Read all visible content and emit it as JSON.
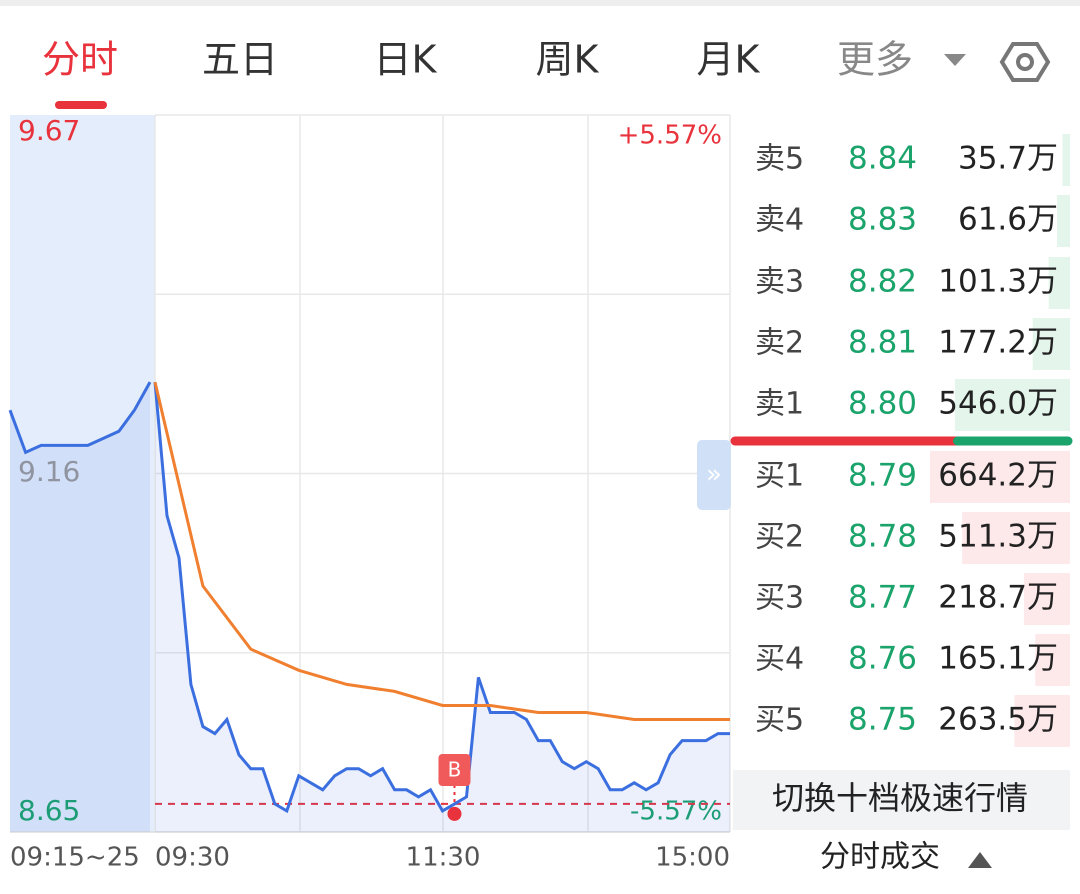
{
  "tabs": [
    "分时",
    "五日",
    "日K",
    "周K",
    "月K",
    "更多"
  ],
  "chart": {
    "type": "line",
    "ylim": [
      8.65,
      9.67
    ],
    "yticks": [
      8.65,
      9.16,
      9.67
    ],
    "pct_labels": [
      "+5.57%",
      "-5.57%"
    ],
    "xlabels": [
      "09:15~25",
      "09:30",
      "11:30",
      "15:00"
    ],
    "premarket": [
      9.25,
      9.19,
      9.2,
      9.2,
      9.2,
      9.2,
      9.21,
      9.22,
      9.25,
      9.29
    ],
    "price": [
      9.29,
      9.1,
      9.04,
      8.86,
      8.8,
      8.79,
      8.81,
      8.76,
      8.74,
      8.74,
      8.69,
      8.68,
      8.73,
      8.72,
      8.71,
      8.73,
      8.74,
      8.74,
      8.73,
      8.74,
      8.71,
      8.71,
      8.7,
      8.71,
      8.68,
      8.69,
      8.7,
      8.87,
      8.82,
      8.82,
      8.82,
      8.81,
      8.78,
      8.78,
      8.75,
      8.74,
      8.75,
      8.74,
      8.71,
      8.71,
      8.72,
      8.71,
      8.72,
      8.76,
      8.78,
      8.78,
      8.78,
      8.79,
      8.79
    ],
    "average": [
      9.29,
      9.0,
      8.91,
      8.88,
      8.86,
      8.85,
      8.83,
      8.83,
      8.82,
      8.82,
      8.81,
      8.81,
      8.81
    ],
    "reference_line": 8.69,
    "buy_marker": "B"
  },
  "order_book": {
    "asks": [
      {
        "label": "卖5",
        "price": "8.84",
        "volume": 35.7,
        "volume_label": "35.7万"
      },
      {
        "label": "卖4",
        "price": "8.83",
        "volume": 61.6,
        "volume_label": "61.6万"
      },
      {
        "label": "卖3",
        "price": "8.82",
        "volume": 101.3,
        "volume_label": "101.3万"
      },
      {
        "label": "卖2",
        "price": "8.81",
        "volume": 177.2,
        "volume_label": "177.2万"
      },
      {
        "label": "卖1",
        "price": "8.80",
        "volume": 546.0,
        "volume_label": "546.0万"
      }
    ],
    "bids": [
      {
        "label": "买1",
        "price": "8.79",
        "volume": 664.2,
        "volume_label": "664.2万"
      },
      {
        "label": "买2",
        "price": "8.78",
        "volume": 511.3,
        "volume_label": "511.3万"
      },
      {
        "label": "买3",
        "price": "8.77",
        "volume": 218.7,
        "volume_label": "218.7万"
      },
      {
        "label": "买4",
        "price": "8.76",
        "volume": 165.1,
        "volume_label": "165.1万"
      },
      {
        "label": "买5",
        "price": "8.75",
        "volume": 263.5,
        "volume_label": "263.5万"
      }
    ]
  },
  "toggle_button": "切换十档极速行情",
  "trades_button": "分时成交"
}
